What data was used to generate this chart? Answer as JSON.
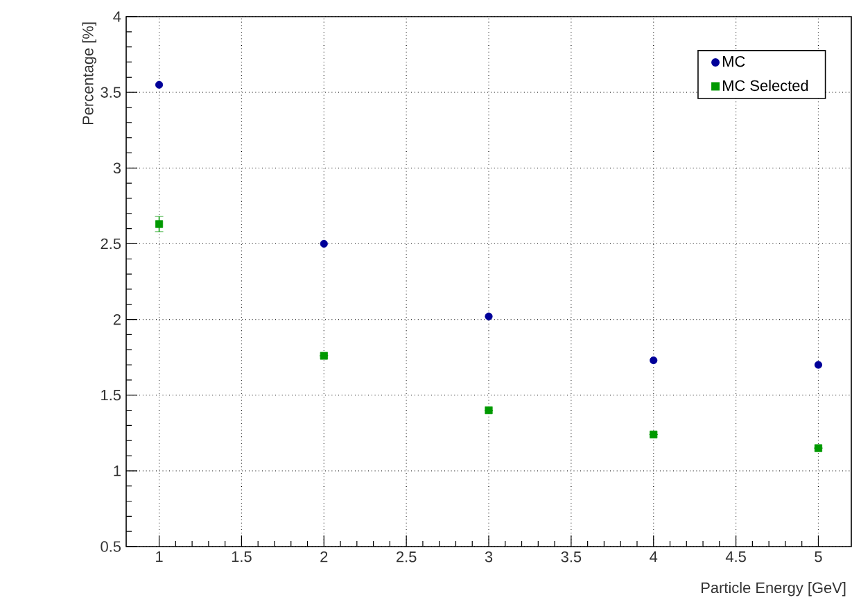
{
  "chart_data": {
    "type": "scatter",
    "xlabel": "Particle Energy [GeV]",
    "ylabel": "Percentage [%]",
    "x": [
      1,
      2,
      3,
      4,
      5
    ],
    "series": [
      {
        "name": "MC",
        "color": "#000099",
        "marker": "circle",
        "values": [
          3.55,
          2.5,
          2.02,
          1.73,
          1.7
        ]
      },
      {
        "name": "MC Selected",
        "color": "#009900",
        "marker": "square",
        "values": [
          2.63,
          1.76,
          1.4,
          1.24,
          1.15
        ],
        "errors": [
          0.05,
          null,
          null,
          null,
          null
        ]
      }
    ],
    "xlim": [
      0.8,
      5.2
    ],
    "ylim": [
      0.5,
      4
    ],
    "xticks": [
      1,
      1.5,
      2,
      2.5,
      3,
      3.5,
      4,
      4.5,
      5
    ],
    "yticks": [
      0.5,
      1,
      1.5,
      2,
      2.5,
      3,
      3.5,
      4
    ],
    "grid": true,
    "legend": "top right"
  }
}
